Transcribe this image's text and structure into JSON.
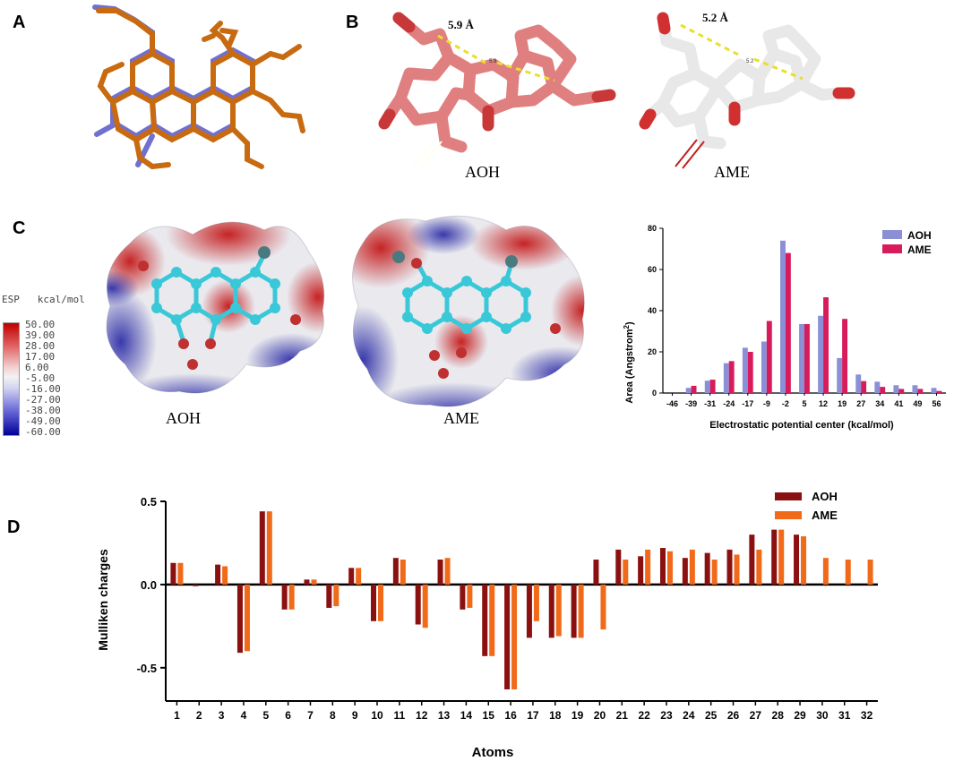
{
  "panels": {
    "a": {
      "label": "A"
    },
    "b": {
      "label": "B",
      "aoh_distance": "5.9 Å",
      "ame_distance": "5.2 Å",
      "aoh_small_label": "5.9",
      "ame_small_label": "5.2",
      "aoh_caption": "AOH",
      "ame_caption": "AME"
    },
    "c": {
      "label": "C",
      "aoh_caption": "AOH",
      "ame_caption": "AME"
    },
    "d": {
      "label": "D"
    }
  },
  "esp_scale": {
    "title": "ESP   kcal/mol",
    "ticks": [
      "50.00",
      "39.00",
      "28.00",
      "17.00",
      "6.00",
      "-5.00",
      "-16.00",
      "-27.00",
      "-38.00",
      "-49.00",
      "-60.00"
    ]
  },
  "colors": {
    "aoh_hist": "#8a8fd6",
    "ame_hist": "#d81b5a",
    "aoh_bar": "#8b1010",
    "ame_bar": "#f06a1a",
    "esp_positive": "#c00000",
    "esp_negative": "#00009a",
    "aoh_overlay": "#7070d0",
    "ame_overlay": "#c86a10",
    "aoh_stick": "#e07f7f",
    "ame_stick": "#e8e8e8"
  },
  "icons": [
    "alternariol-structure-overlay",
    "aoh-stick-model",
    "ame-stick-model",
    "aoh-esp-surface",
    "ame-esp-surface",
    "esp-color-scale"
  ],
  "chart_data": [
    {
      "type": "bar",
      "ylabel": "Area (Angstrom²)",
      "ylabel_main": "Area (Angstrom",
      "ylabel_sup": "2",
      "ylabel_end": ")",
      "xlabel": "Electrostatic potential center (kcal/mol)",
      "categories": [
        "-46",
        "-39",
        "-31",
        "-24",
        "-17",
        "-9",
        "-2",
        "5",
        "12",
        "19",
        "27",
        "34",
        "41",
        "49",
        "56"
      ],
      "ylim": [
        0,
        80
      ],
      "yticks": [
        "0",
        "20",
        "40",
        "60",
        "80"
      ],
      "legend_position": "top-right",
      "grid": false,
      "series": [
        {
          "name": "AOH",
          "values": [
            0,
            2.5,
            6,
            14.5,
            22,
            25,
            74,
            33.5,
            37.5,
            17,
            9,
            5.5,
            3.8,
            3.8,
            2.5
          ]
        },
        {
          "name": "AME",
          "values": [
            0,
            3.5,
            6.5,
            15.5,
            20,
            35,
            68,
            33.5,
            46.5,
            36,
            5.8,
            3,
            2,
            2,
            1
          ]
        }
      ]
    },
    {
      "type": "bar",
      "ylabel": "Mulliken charges",
      "xlabel": "Atoms",
      "categories": [
        "1",
        "2",
        "3",
        "4",
        "5",
        "6",
        "7",
        "8",
        "9",
        "10",
        "11",
        "12",
        "13",
        "14",
        "15",
        "16",
        "17",
        "18",
        "19",
        "20",
        "21",
        "22",
        "23",
        "24",
        "25",
        "26",
        "27",
        "28",
        "29",
        "30",
        "31",
        "32"
      ],
      "ylim": [
        -0.7,
        0.5
      ],
      "yticks": [
        "0.5",
        "0.0",
        "-0.5"
      ],
      "yticks_values": [
        0.5,
        0.0,
        -0.5
      ],
      "legend_position": "top-right",
      "grid": false,
      "series": [
        {
          "name": "AOH",
          "values": [
            0.13,
            -0.01,
            0.12,
            -0.41,
            0.44,
            -0.15,
            0.03,
            -0.14,
            0.1,
            -0.22,
            0.16,
            -0.24,
            0.15,
            -0.15,
            -0.43,
            -0.63,
            -0.32,
            -0.32,
            -0.32,
            0.15,
            0.21,
            0.17,
            0.22,
            0.16,
            0.19,
            0.21,
            0.3,
            0.33,
            0.3,
            null,
            null,
            null
          ]
        },
        {
          "name": "AME",
          "values": [
            0.13,
            null,
            0.11,
            -0.4,
            0.44,
            -0.15,
            0.03,
            -0.13,
            0.1,
            -0.22,
            0.15,
            -0.26,
            0.16,
            -0.14,
            -0.43,
            -0.63,
            -0.22,
            -0.31,
            -0.32,
            -0.27,
            0.15,
            0.21,
            0.2,
            0.21,
            0.15,
            0.18,
            0.21,
            0.33,
            0.29,
            0.16,
            0.15,
            0.15
          ]
        }
      ]
    }
  ]
}
